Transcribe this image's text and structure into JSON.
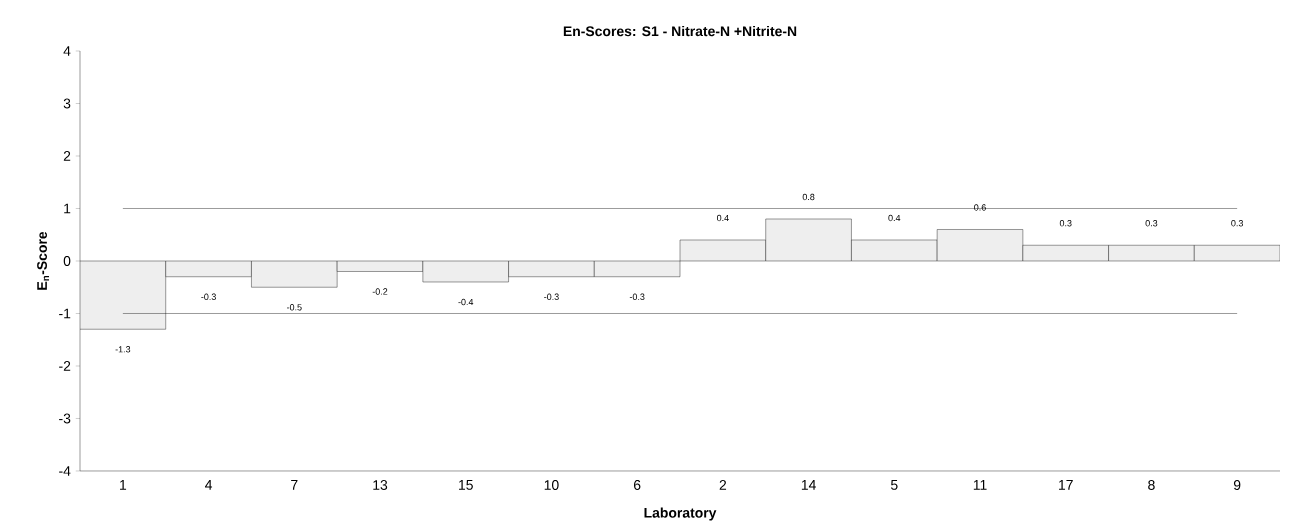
{
  "chart_data": {
    "type": "bar",
    "title": "En-Scores: S1 - Nitrate-N  +Nitrite-N",
    "xlabel": "Laboratory",
    "ylabel": "E$_{n}$-Score",
    "categories": [
      "1",
      "4",
      "7",
      "13",
      "15",
      "10",
      "6",
      "2",
      "14",
      "5",
      "11",
      "17",
      "8",
      "9"
    ],
    "values": [
      -1.3,
      -0.3,
      -0.5,
      -0.2,
      -0.4,
      -0.3,
      -0.3,
      0.4,
      0.8,
      0.4,
      0.6,
      0.3,
      0.3,
      0.3
    ],
    "color": "#eeeeee",
    "data_labels": true,
    "ylim": [
      -4,
      4
    ],
    "yticks": [
      -4,
      -3,
      -2,
      -1,
      0,
      1,
      2,
      3,
      4
    ],
    "grid": false,
    "ref_lines": [
      {
        "axis": "y",
        "value": 1,
        "color": "#000000"
      },
      {
        "axis": "y",
        "value": -1,
        "color": "#000000"
      }
    ]
  }
}
